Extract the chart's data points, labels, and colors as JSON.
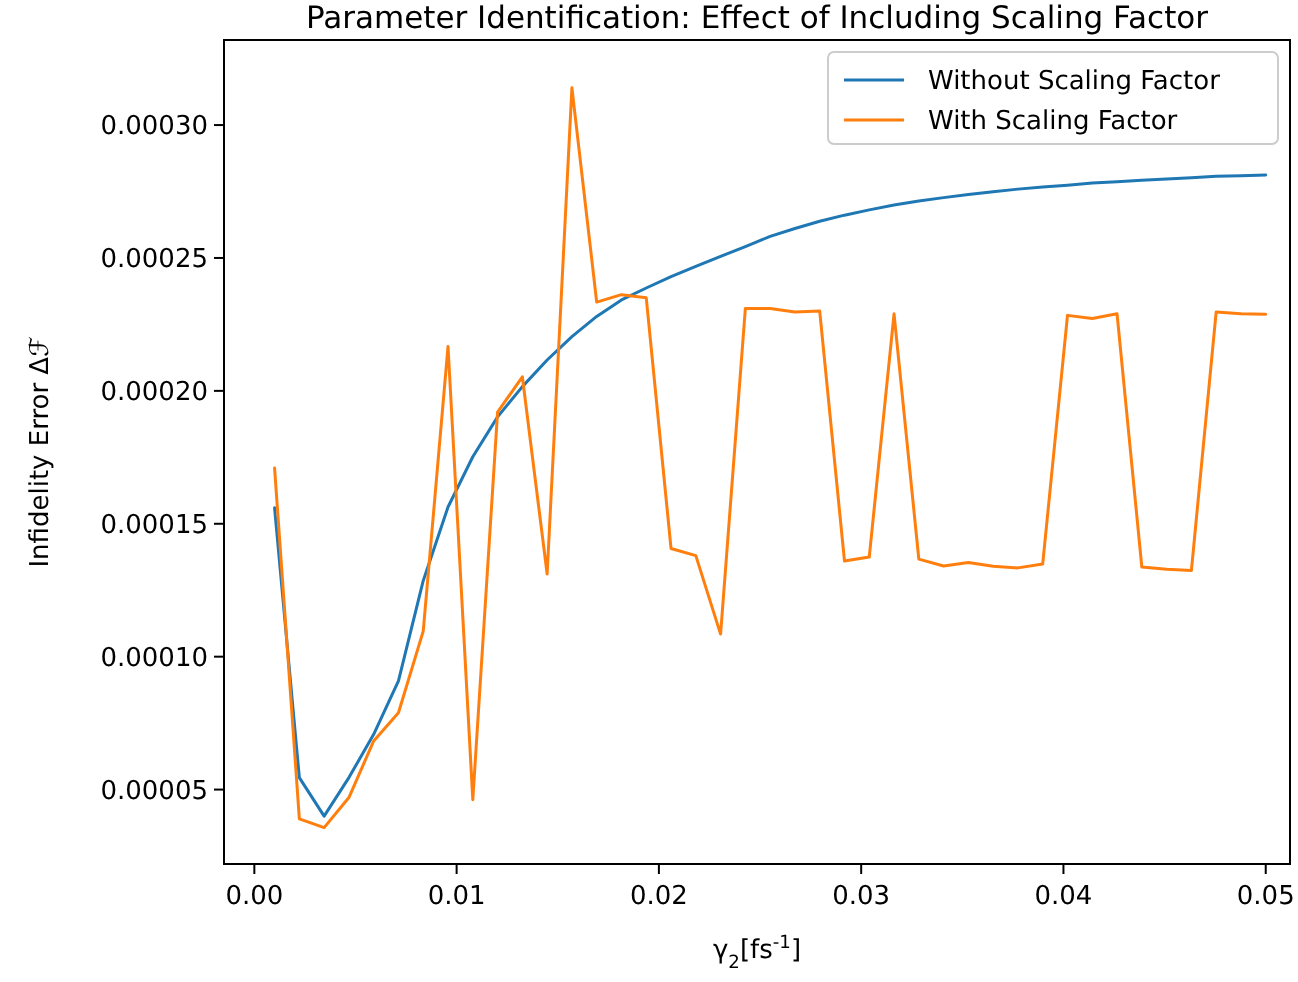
{
  "chart_data": {
    "type": "line",
    "title": "Parameter Identification: Effect of Including Scaling Factor",
    "xlabel": "γ$_{2}$[fs$^{-1}$]",
    "ylabel": "Infidelity Error Δℱ",
    "x": [
      0.001,
      0.002225,
      0.00345,
      0.004675,
      0.0059,
      0.007125,
      0.00835,
      0.009575,
      0.0108,
      0.012025,
      0.01325,
      0.014475,
      0.0157,
      0.016925,
      0.01815,
      0.019375,
      0.0206,
      0.021825,
      0.02305,
      0.024275,
      0.0255,
      0.026725,
      0.02795,
      0.029175,
      0.0304,
      0.031625,
      0.03285,
      0.034075,
      0.0353,
      0.036525,
      0.03775,
      0.038975,
      0.0402,
      0.041425,
      0.04265,
      0.043875,
      0.0451,
      0.046325,
      0.04755,
      0.048775,
      0.05
    ],
    "series": [
      {
        "name": "Without Scaling Factor",
        "color": "#1f77b4",
        "values": [
          0.000156,
          5.45e-05,
          4e-05,
          5.45e-05,
          7.08e-05,
          9.09e-05,
          0.0001286,
          0.0001563,
          0.0001752,
          0.0001902,
          0.0002016,
          0.0002116,
          0.0002204,
          0.000228,
          0.0002342,
          0.0002387,
          0.000243,
          0.0002468,
          0.0002506,
          0.0002543,
          0.0002581,
          0.0002611,
          0.0002638,
          0.0002661,
          0.0002681,
          0.0002699,
          0.0002714,
          0.0002727,
          0.0002739,
          0.0002749,
          0.0002759,
          0.0002767,
          0.0002774,
          0.0002782,
          0.0002787,
          0.0002792,
          0.0002797,
          0.0002802,
          0.0002807,
          0.0002809,
          0.0002812
        ]
      },
      {
        "name": "With Scaling Factor",
        "color": "#ff7f0e",
        "values": [
          0.000171,
          3.9e-05,
          3.57e-05,
          4.7e-05,
          6.83e-05,
          7.89e-05,
          0.0001096,
          0.0002167,
          4.62e-05,
          0.000192,
          0.0002053,
          0.0001311,
          0.000314,
          0.0002334,
          0.0002362,
          0.000235,
          0.0001407,
          0.000138,
          0.0001085,
          0.000231,
          0.000231,
          0.0002297,
          0.00023,
          0.000136,
          0.0001375,
          0.000229,
          0.0001367,
          0.0001341,
          0.0001354,
          0.000134,
          0.0001334,
          0.0001349,
          0.0002284,
          0.0002272,
          0.000229,
          0.0001337,
          0.0001329,
          0.0001324,
          0.0002297,
          0.000229,
          0.0002288
        ]
      }
    ],
    "xlim": [
      -0.0015,
      0.0512
    ],
    "ylim": [
      2.2e-05,
      0.000332
    ],
    "xticks": [
      {
        "value": 0,
        "label": "0.00"
      },
      {
        "value": 0.01,
        "label": "0.01"
      },
      {
        "value": 0.02,
        "label": "0.02"
      },
      {
        "value": 0.03,
        "label": "0.03"
      },
      {
        "value": 0.04,
        "label": "0.04"
      },
      {
        "value": 0.05,
        "label": "0.05"
      }
    ],
    "yticks": [
      {
        "value": 5e-05,
        "label": "0.00005"
      },
      {
        "value": 0.0001,
        "label": "0.00010"
      },
      {
        "value": 0.00015,
        "label": "0.00015"
      },
      {
        "value": 0.0002,
        "label": "0.00020"
      },
      {
        "value": 0.00025,
        "label": "0.00025"
      },
      {
        "value": 0.0003,
        "label": "0.00030"
      }
    ],
    "legend": "top right",
    "marker": "none",
    "line_style": "solid",
    "grid": false
  }
}
